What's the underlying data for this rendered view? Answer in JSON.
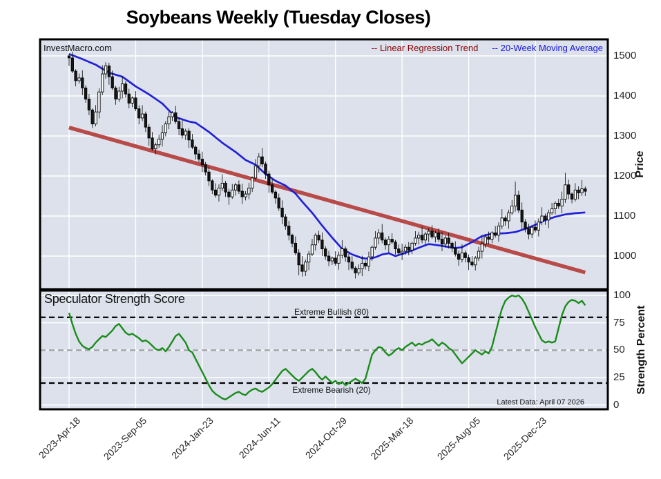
{
  "title": "Soybeans Weekly (Tuesday Closes)",
  "watermark": "InvestMacro.com",
  "legend": {
    "items": [
      {
        "id": "regression",
        "label": "-- Linear Regression Trend",
        "color": "#8b0000"
      },
      {
        "id": "ma20",
        "label": "-- 20-Week Moving Average",
        "color": "#1414e0"
      }
    ]
  },
  "price_panel": {
    "ylabel": "Price",
    "yticks": [
      1500,
      1400,
      1300,
      1200,
      1100,
      1000
    ]
  },
  "strength_panel": {
    "title": "Speculator Strength Score",
    "ylabel": "Strength Percent",
    "yticks": [
      100,
      75,
      50,
      25,
      0
    ],
    "bullish_label": "Extreme Bullish (80)",
    "bullish_value": 80,
    "bearish_label": "Extreme Bearish (20)",
    "bearish_value": 20,
    "midline_value": 50,
    "note": "Latest Data: April 07 2026"
  },
  "x_axis": {
    "tick_labels": [
      "2023-Apr-18",
      "2023-Sep-05",
      "2024-Jan-23",
      "2024-Jun-11",
      "2024-Oct-29",
      "2025-Mar-18",
      "2025-Aug-05",
      "2025-Dec-23"
    ],
    "tick_weeks": [
      0,
      20,
      40,
      60,
      80,
      100,
      120,
      140
    ],
    "weeks_total": 156
  },
  "colors": {
    "plot_bg": "#dce1ec",
    "grid": "#ffffff",
    "candle_up": "#ffffff",
    "candle_down": "#161616",
    "candle_edge": "#000000",
    "ma": "#2121d6",
    "regression": "#b84a48",
    "strength": "#1a8c1a",
    "threshold": "#000000",
    "midline": "#999999",
    "border": "#000000"
  },
  "chart_data": [
    {
      "type": "candlestick",
      "title": "Soybeans Weekly (Tuesday Closes)",
      "x_start": "2023-04-18",
      "x_step_days": 7,
      "ylabel": "Price",
      "ylim": [
        921,
        1536
      ],
      "closes": [
        1495,
        1462,
        1438,
        1445,
        1420,
        1392,
        1365,
        1330,
        1360,
        1410,
        1455,
        1475,
        1448,
        1420,
        1392,
        1412,
        1430,
        1405,
        1382,
        1395,
        1368,
        1345,
        1355,
        1322,
        1295,
        1268,
        1278,
        1292,
        1308,
        1330,
        1348,
        1358,
        1336,
        1318,
        1302,
        1312,
        1290,
        1272,
        1255,
        1242,
        1228,
        1210,
        1188,
        1165,
        1152,
        1170,
        1182,
        1160,
        1148,
        1165,
        1178,
        1162,
        1148,
        1155,
        1170,
        1195,
        1225,
        1248,
        1230,
        1205,
        1178,
        1160,
        1145,
        1120,
        1098,
        1075,
        1052,
        1032,
        1008,
        978,
        962,
        985,
        1005,
        1028,
        1052,
        1040,
        1018,
        1000,
        988,
        995,
        982,
        1002,
        1018,
        998,
        985,
        970,
        958,
        968,
        982,
        975,
        998,
        1022,
        1045,
        1058,
        1040,
        1028,
        1042,
        1035,
        1018,
        1008,
        1012,
        1022,
        1015,
        1032,
        1045,
        1052,
        1040,
        1055,
        1062,
        1048,
        1058,
        1042,
        1030,
        1045,
        1032,
        1020,
        1005,
        992,
        1008,
        996,
        985,
        978,
        995,
        1012,
        1030,
        1048,
        1042,
        1058,
        1052,
        1075,
        1095,
        1088,
        1108,
        1125,
        1152,
        1115,
        1085,
        1068,
        1055,
        1072,
        1065,
        1085,
        1100,
        1090,
        1108,
        1118,
        1132,
        1125,
        1142,
        1178,
        1155,
        1142,
        1165,
        1158,
        1168,
        1162
      ],
      "first_open": 1500,
      "wick_up_pattern": [
        8,
        15,
        5,
        11,
        19,
        7,
        13,
        4,
        17,
        9,
        22,
        6
      ],
      "wick_down_pattern": [
        10,
        6,
        16,
        8,
        12,
        20,
        5,
        14,
        7,
        18,
        9,
        13
      ],
      "extreme_overrides": {
        "0": {
          "high": 1504
        },
        "11": {
          "high": 1484
        },
        "69": {
          "low": 952
        },
        "70": {
          "low": 949
        },
        "134": {
          "high": 1186
        },
        "149": {
          "high": 1208
        }
      },
      "ma20_points": [
        [
          0,
          1505
        ],
        [
          4,
          1492
        ],
        [
          8,
          1478
        ],
        [
          12,
          1458
        ],
        [
          16,
          1448
        ],
        [
          20,
          1424
        ],
        [
          24,
          1404
        ],
        [
          28,
          1381
        ],
        [
          32,
          1347
        ],
        [
          36,
          1336
        ],
        [
          38,
          1333
        ],
        [
          42,
          1310
        ],
        [
          46,
          1283
        ],
        [
          50,
          1260
        ],
        [
          53,
          1240
        ],
        [
          56,
          1228
        ],
        [
          59,
          1205
        ],
        [
          62,
          1188
        ],
        [
          65,
          1176
        ],
        [
          68,
          1156
        ],
        [
          70,
          1136
        ],
        [
          73,
          1108
        ],
        [
          76,
          1076
        ],
        [
          79,
          1046
        ],
        [
          82,
          1018
        ],
        [
          85,
          1004
        ],
        [
          88,
          995
        ],
        [
          90,
          993
        ],
        [
          92,
          997
        ],
        [
          94,
          1004
        ],
        [
          96,
          1007
        ],
        [
          98,
          1000
        ],
        [
          100,
          1005
        ],
        [
          103,
          1014
        ],
        [
          106,
          1024
        ],
        [
          108,
          1030
        ],
        [
          110,
          1028
        ],
        [
          113,
          1024
        ],
        [
          116,
          1020
        ],
        [
          118,
          1022
        ],
        [
          121,
          1035
        ],
        [
          124,
          1050
        ],
        [
          127,
          1056
        ],
        [
          131,
          1057
        ],
        [
          134,
          1060
        ],
        [
          137,
          1068
        ],
        [
          140,
          1078
        ],
        [
          143,
          1090
        ],
        [
          146,
          1098
        ],
        [
          149,
          1104
        ],
        [
          152,
          1107
        ],
        [
          155,
          1109
        ]
      ],
      "regression": {
        "start_value": 1321,
        "end_value": 959
      }
    },
    {
      "type": "line",
      "name": "Speculator Strength Score",
      "ylabel": "Strength Percent",
      "ylim": [
        -4,
        104
      ],
      "thresholds": [
        80,
        50,
        20
      ],
      "values": [
        84,
        74,
        65,
        58,
        54,
        52,
        51,
        53,
        57,
        60,
        63,
        62,
        65,
        68,
        72,
        74,
        70,
        66,
        64,
        65,
        63,
        61,
        58,
        59,
        57,
        54,
        51,
        50,
        52,
        49,
        53,
        58,
        63,
        65,
        61,
        57,
        50,
        48,
        42,
        36,
        30,
        24,
        18,
        13,
        10,
        8,
        6,
        5,
        7,
        9,
        11,
        12,
        10,
        9,
        12,
        14,
        15,
        13,
        12,
        14,
        16,
        19,
        23,
        27,
        31,
        33,
        30,
        27,
        24,
        22,
        25,
        28,
        31,
        33,
        30,
        26,
        23,
        26,
        23,
        20,
        22,
        19,
        21,
        18,
        20,
        22,
        24,
        22,
        20,
        24,
        35,
        46,
        50,
        53,
        52,
        48,
        45,
        47,
        50,
        52,
        50,
        53,
        55,
        57,
        54,
        56,
        55,
        57,
        58,
        60,
        57,
        54,
        57,
        55,
        52,
        50,
        46,
        42,
        38,
        41,
        44,
        47,
        50,
        48,
        46,
        49,
        47,
        53,
        65,
        77,
        88,
        95,
        98,
        100,
        99,
        100,
        97,
        92,
        85,
        78,
        71,
        65,
        59,
        57,
        58,
        57,
        58,
        70,
        82,
        90,
        94,
        96,
        95,
        93,
        95,
        91
      ]
    }
  ]
}
